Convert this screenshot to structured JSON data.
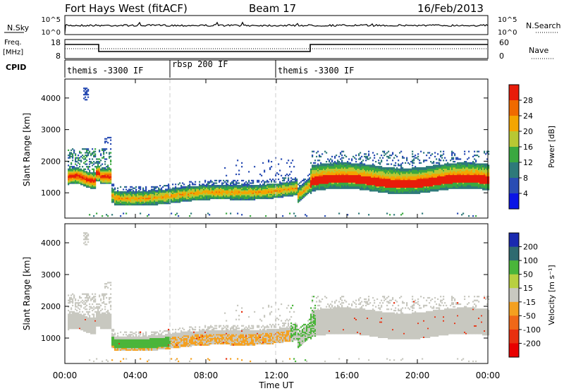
{
  "header": {
    "station": "Fort Hays West (fitACF)",
    "beam": "Beam 17",
    "date": "16/Feb/2013"
  },
  "noise_panel": {
    "left_label": "N.Sky",
    "right_label": "N.Search",
    "ticks": [
      "10^5",
      "10^0"
    ]
  },
  "freq_panel": {
    "left_label": "Freq.",
    "left_unit": "[MHz]",
    "left_ticks": [
      "18",
      "8"
    ],
    "right_label": "Nave",
    "right_ticks": [
      "60",
      "0"
    ]
  },
  "cpid_panel": {
    "label": "CPID",
    "segments": [
      {
        "text": "themis -3300 IF",
        "start_hour": 0
      },
      {
        "text": "rbsp 200 IF",
        "start_hour": 6
      },
      {
        "text": "themis -3300 IF",
        "start_hour": 12
      }
    ]
  },
  "chart_data": [
    {
      "type": "heatmap",
      "name": "power",
      "ylabel": "Slant Range [km]",
      "xlim": [
        0,
        24
      ],
      "ylim": [
        200,
        4600
      ],
      "yticks": [
        "1000",
        "2000",
        "3000",
        "4000"
      ],
      "colorbar": {
        "label": "Power [dB]",
        "ticks": [
          "4",
          "8",
          "12",
          "16",
          "20",
          "24",
          "28"
        ],
        "range": [
          0,
          31
        ],
        "colors": [
          "#0a14e6",
          "#2a4db3",
          "#2e7a7a",
          "#3aa840",
          "#b8c833",
          "#f4a500",
          "#f06a00",
          "#e81c0a"
        ]
      }
    },
    {
      "type": "heatmap",
      "name": "velocity",
      "ylabel": "Slant Range [km]",
      "xlim": [
        0,
        24
      ],
      "ylim": [
        200,
        4600
      ],
      "yticks": [
        "1000",
        "2000",
        "3000",
        "4000"
      ],
      "colorbar": {
        "label": "Velocity [m s⁻¹]",
        "ticks": [
          "200",
          "100",
          "50",
          "15",
          "-15",
          "-50",
          "-100",
          "-200"
        ],
        "colors": [
          "#1a2ab0",
          "#2f6a70",
          "#4ab53a",
          "#b8d040",
          "#c8c8c0",
          "#f4a020",
          "#f06818",
          "#e83010",
          "#e80000"
        ]
      }
    }
  ],
  "xaxis": {
    "label": "Time UT",
    "ticks": [
      "00:00",
      "04:00",
      "08:00",
      "12:00",
      "16:00",
      "20:00",
      "00:00"
    ]
  }
}
